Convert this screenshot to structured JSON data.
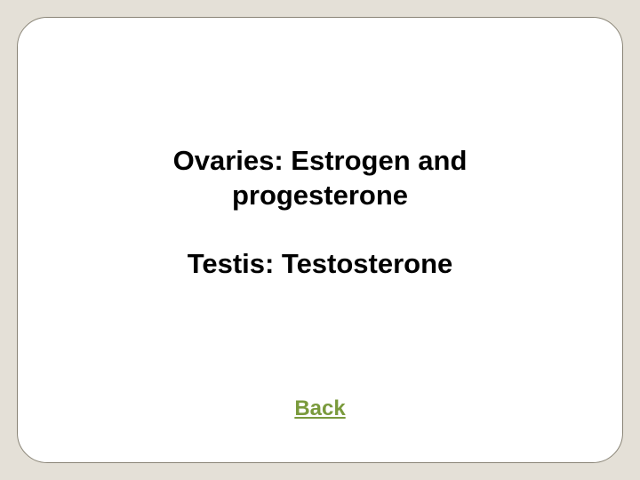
{
  "card": {
    "background_color": "#ffffff",
    "border_color": "#8a8577",
    "border_radius": 34,
    "outer_background": "#e4e0d7"
  },
  "text": {
    "line1": "Ovaries: Estrogen and",
    "line2": "progesterone",
    "line3": "Testis: Testosterone",
    "font_family": "Verdana, Geneva, sans-serif",
    "font_size": 31,
    "font_weight": "bold",
    "color": "#000000"
  },
  "link": {
    "label": "Back",
    "font_size": 24,
    "font_weight": "bold",
    "color": "#7a9a3c",
    "underline": true
  }
}
